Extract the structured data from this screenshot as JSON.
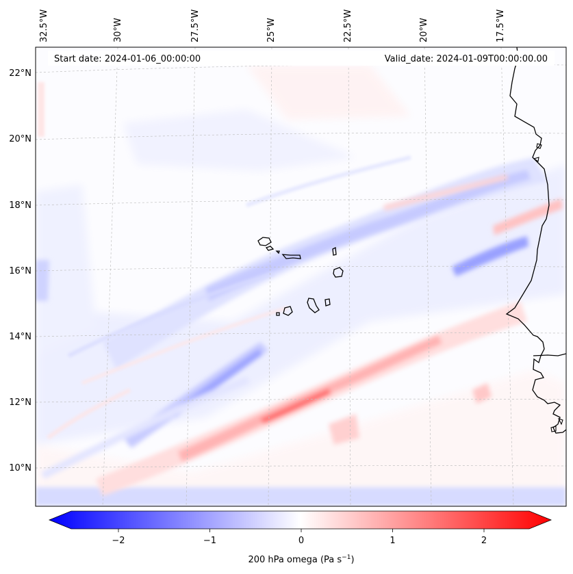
{
  "header": {
    "start_date": "Start date: 2024-01-06_00:00:00",
    "valid_date": "Valid_date: 2024-01-09T00:00:00.00"
  },
  "map": {
    "lon_labels": [
      "32.5°W",
      "30°W",
      "27.5°W",
      "25°W",
      "22.5°W",
      "20°W",
      "17.5°W"
    ],
    "lat_labels": [
      "22°N",
      "20°N",
      "18°N",
      "16°N",
      "14°N",
      "12°N",
      "10°N"
    ],
    "gridlines": "dashed",
    "field_colors": {
      "negative": "#0000ff",
      "zero": "#ffffff",
      "positive": "#ff0000"
    }
  },
  "colorbar": {
    "tick_labels": [
      "−2",
      "−1",
      "0",
      "1",
      "2"
    ],
    "tick_values": [
      -2,
      -1,
      0,
      1,
      2
    ],
    "range": [
      -2.5,
      2.5
    ],
    "extend": "both",
    "label_main": "200 hPa omega (Pa s",
    "label_sup": "−1",
    "label_end": ")"
  }
}
